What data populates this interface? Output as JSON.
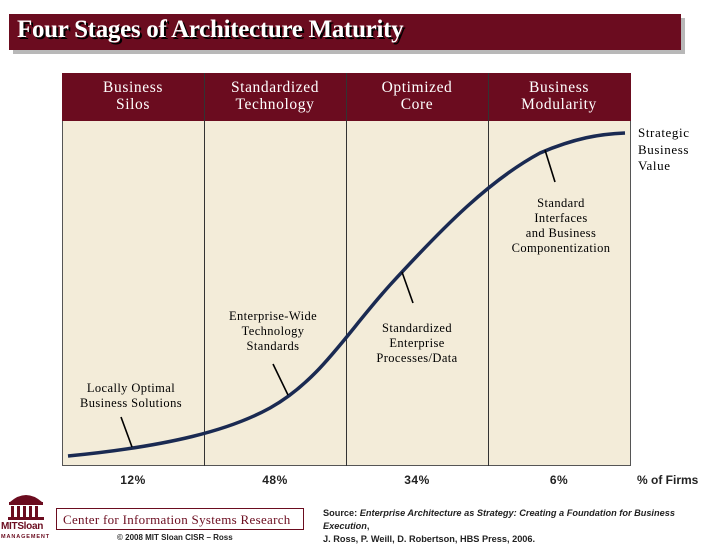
{
  "title": "Four Stages of Architecture Maturity",
  "stages": [
    {
      "label_line1": "Business",
      "label_line2": "Silos",
      "percent": "12%"
    },
    {
      "label_line1": "Standardized",
      "label_line2": "Technology",
      "percent": "48%"
    },
    {
      "label_line1": "Optimized",
      "label_line2": "Core",
      "percent": "34%"
    },
    {
      "label_line1": "Business",
      "label_line2": "Modularity",
      "percent": "6%"
    }
  ],
  "percent_label": "% of Firms",
  "y_axis_label": [
    "Strategic",
    "Business",
    "Value"
  ],
  "annotations": [
    {
      "lines": [
        "Locally Optimal",
        "Business Solutions"
      ]
    },
    {
      "lines": [
        "Enterprise-Wide",
        "Technology",
        "Standards"
      ]
    },
    {
      "lines": [
        "Standardized",
        "Enterprise",
        "Processes/Data"
      ]
    },
    {
      "lines": [
        "Standard",
        "Interfaces",
        "and Business",
        "Componentization"
      ]
    }
  ],
  "footer": {
    "logo_text": "MITSloan",
    "logo_sub": "MANAGEMENT",
    "center_name": "Center for Information Systems Research",
    "copyright": "© 2008 MIT Sloan CISR – Ross",
    "source_prefix": "Source: ",
    "source_title": "Enterprise Architecture as Strategy: Creating a Foundation for Business Execution",
    "source_suffix": ",",
    "source_line2": "J. Ross, P. Weill, D. Robertson, HBS Press, 2006."
  },
  "colors": {
    "accent": "#6b0c1f",
    "panel": "#f3ecd9",
    "curve": "#1a2a52"
  }
}
